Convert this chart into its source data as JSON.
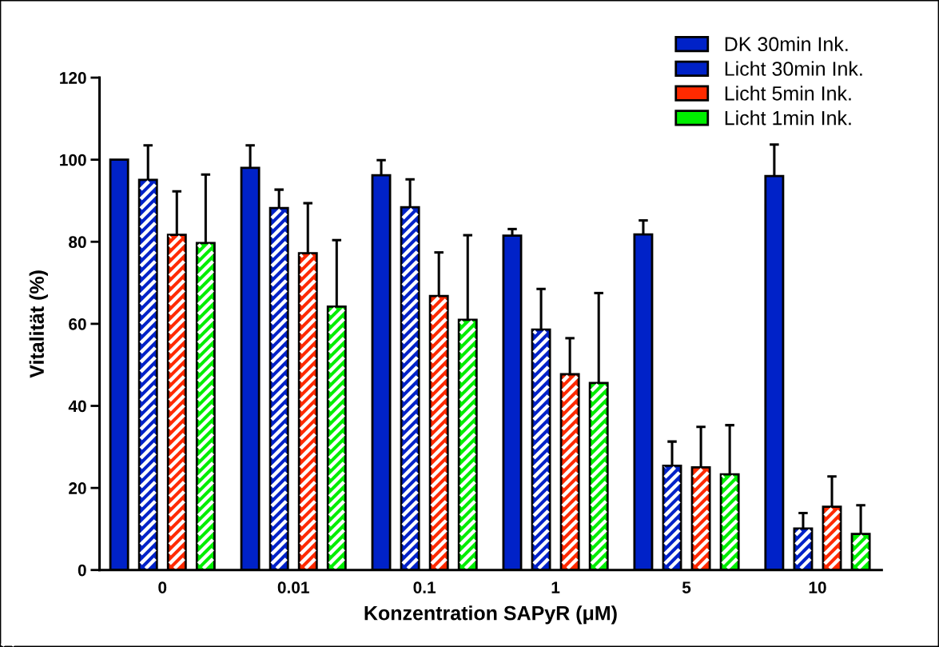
{
  "chart_data": {
    "type": "bar",
    "xlabel": "Konzentration SAPyR (μM)",
    "ylabel": "Vitalität (%)",
    "categories": [
      "0",
      "0.01",
      "0.1",
      "1",
      "5",
      "10"
    ],
    "series": [
      {
        "name": "DK 30min Ink.",
        "color": "#0022c8",
        "values": [
          100,
          98.0,
          96.2,
          81.5,
          81.8,
          96.0
        ],
        "errors": [
          null,
          [
            98.0,
            103.5
          ],
          [
            96.2,
            99.9
          ],
          [
            81.5,
            83.1
          ],
          [
            81.8,
            85.2
          ],
          [
            96.0,
            103.7
          ]
        ]
      },
      {
        "name": "Licht 30min Ink.",
        "color": "#0022c8",
        "values": [
          95.1,
          88.2,
          88.4,
          58.6,
          25.4,
          10.1
        ],
        "errors": [
          [
            95.1,
            103.5
          ],
          [
            88.2,
            92.7
          ],
          [
            88.4,
            95.2
          ],
          [
            58.6,
            68.5
          ],
          [
            25.4,
            31.3
          ],
          [
            10.1,
            13.9
          ]
        ]
      },
      {
        "name": "Licht 5min Ink.",
        "color": "#ff2a00",
        "values": [
          81.7,
          77.2,
          66.8,
          47.7,
          25.0,
          15.4
        ],
        "errors": [
          [
            81.7,
            92.3
          ],
          [
            77.2,
            89.4
          ],
          [
            66.8,
            77.4
          ],
          [
            47.7,
            56.5
          ],
          [
            25.0,
            34.9
          ],
          [
            15.4,
            22.8
          ]
        ]
      },
      {
        "name": "Licht 1min Ink.",
        "color": "#00ee00",
        "values": [
          79.7,
          64.2,
          61.0,
          45.6,
          23.3,
          8.8
        ],
        "errors": [
          [
            79.7,
            96.4
          ],
          [
            64.2,
            80.4
          ],
          [
            61.0,
            81.6
          ],
          [
            45.6,
            67.5
          ],
          [
            23.3,
            35.3
          ],
          [
            8.8,
            15.8
          ]
        ]
      }
    ],
    "ylim": [
      0,
      120
    ],
    "yticks": [
      0,
      20,
      40,
      60,
      80,
      100,
      120
    ],
    "grid": false,
    "legend": "top right"
  }
}
